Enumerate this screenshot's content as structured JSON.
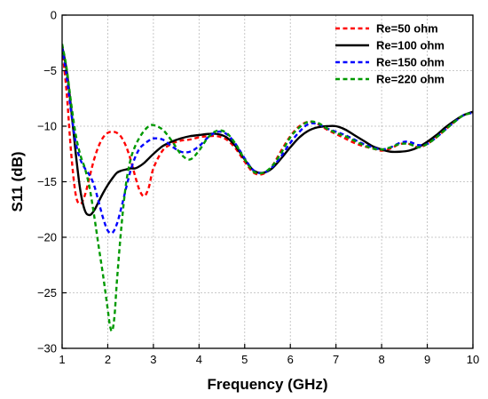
{
  "chart_data": {
    "type": "line",
    "title": "",
    "xlabel": "Frequency (GHz)",
    "ylabel": "S11 (dB)",
    "xlim": [
      1,
      10
    ],
    "ylim": [
      -30,
      0
    ],
    "xticks": [
      1,
      2,
      3,
      4,
      5,
      6,
      7,
      8,
      9,
      10
    ],
    "yticks": [
      0,
      -5,
      -10,
      -15,
      -20,
      -25,
      -30
    ],
    "grid": true,
    "legend_position": "top-right",
    "series": [
      {
        "name": "Re=50 ohm",
        "color": "#ff0000",
        "style": "dashed",
        "x": [
          1.0,
          1.1,
          1.2,
          1.3,
          1.4,
          1.5,
          1.6,
          1.7,
          1.8,
          1.9,
          2.0,
          2.1,
          2.2,
          2.3,
          2.4,
          2.5,
          2.6,
          2.7,
          2.8,
          2.9,
          3.0,
          3.2,
          3.4,
          3.6,
          3.8,
          4.0,
          4.2,
          4.4,
          4.6,
          4.8,
          5.0,
          5.2,
          5.4,
          5.6,
          5.8,
          6.0,
          6.2,
          6.4,
          6.6,
          6.8,
          7.0,
          7.2,
          7.4,
          7.6,
          7.8,
          8.0,
          8.2,
          8.4,
          8.6,
          8.8,
          9.0,
          9.2,
          9.4,
          9.6,
          9.8,
          10.0
        ],
        "y": [
          -3.0,
          -7.0,
          -12.5,
          -16.2,
          -17.0,
          -16.2,
          -14.6,
          -13.0,
          -11.8,
          -11.0,
          -10.6,
          -10.5,
          -10.6,
          -11.0,
          -11.8,
          -13.0,
          -14.5,
          -15.8,
          -16.3,
          -15.5,
          -13.8,
          -12.2,
          -11.6,
          -11.3,
          -11.2,
          -11.0,
          -10.9,
          -10.9,
          -11.2,
          -12.0,
          -13.2,
          -14.2,
          -14.3,
          -13.6,
          -12.2,
          -10.9,
          -10.0,
          -9.6,
          -9.8,
          -10.3,
          -10.7,
          -11.1,
          -11.5,
          -11.8,
          -12.0,
          -12.2,
          -12.0,
          -11.6,
          -11.6,
          -11.9,
          -11.6,
          -11.0,
          -10.3,
          -9.6,
          -9.0,
          -8.8
        ]
      },
      {
        "name": "Re=100 ohm",
        "color": "#000000",
        "style": "solid",
        "x": [
          1.0,
          1.1,
          1.2,
          1.3,
          1.4,
          1.5,
          1.6,
          1.7,
          1.8,
          1.9,
          2.0,
          2.1,
          2.2,
          2.3,
          2.4,
          2.5,
          2.6,
          2.7,
          2.8,
          2.9,
          3.0,
          3.2,
          3.4,
          3.6,
          3.8,
          4.0,
          4.2,
          4.4,
          4.6,
          4.8,
          5.0,
          5.2,
          5.4,
          5.6,
          5.8,
          6.0,
          6.2,
          6.4,
          6.6,
          6.8,
          7.0,
          7.2,
          7.4,
          7.6,
          7.8,
          8.0,
          8.2,
          8.4,
          8.6,
          8.8,
          9.0,
          9.2,
          9.4,
          9.6,
          9.8,
          10.0
        ],
        "y": [
          -2.8,
          -5.0,
          -8.5,
          -12.5,
          -15.8,
          -17.6,
          -18.0,
          -17.6,
          -16.8,
          -16.0,
          -15.3,
          -14.7,
          -14.2,
          -14.0,
          -13.9,
          -13.8,
          -13.8,
          -13.6,
          -13.3,
          -12.9,
          -12.5,
          -11.8,
          -11.4,
          -11.1,
          -10.9,
          -10.8,
          -10.7,
          -10.7,
          -11.0,
          -11.8,
          -13.0,
          -14.0,
          -14.2,
          -13.8,
          -12.9,
          -11.9,
          -11.0,
          -10.4,
          -10.1,
          -10.0,
          -10.0,
          -10.3,
          -10.8,
          -11.3,
          -11.8,
          -12.1,
          -12.3,
          -12.3,
          -12.2,
          -11.9,
          -11.4,
          -10.8,
          -10.1,
          -9.5,
          -9.0,
          -8.7
        ]
      },
      {
        "name": "Re=150 ohm",
        "color": "#0000ff",
        "style": "dashed",
        "x": [
          1.0,
          1.1,
          1.2,
          1.3,
          1.4,
          1.5,
          1.6,
          1.7,
          1.8,
          1.9,
          2.0,
          2.1,
          2.2,
          2.3,
          2.4,
          2.5,
          2.6,
          2.7,
          2.8,
          2.9,
          3.0,
          3.2,
          3.4,
          3.6,
          3.8,
          4.0,
          4.2,
          4.4,
          4.6,
          4.8,
          5.0,
          5.2,
          5.4,
          5.6,
          5.8,
          6.0,
          6.2,
          6.4,
          6.6,
          6.8,
          7.0,
          7.2,
          7.4,
          7.6,
          7.8,
          8.0,
          8.2,
          8.4,
          8.6,
          8.8,
          9.0,
          9.2,
          9.4,
          9.6,
          9.8,
          10.0
        ],
        "y": [
          -2.9,
          -5.5,
          -8.8,
          -11.5,
          -13.0,
          -13.8,
          -14.4,
          -15.3,
          -16.8,
          -18.3,
          -19.4,
          -19.6,
          -18.8,
          -17.3,
          -15.6,
          -14.0,
          -12.8,
          -12.0,
          -11.6,
          -11.3,
          -11.1,
          -11.2,
          -11.8,
          -12.3,
          -12.3,
          -11.8,
          -11.0,
          -10.5,
          -10.7,
          -11.6,
          -12.9,
          -14.0,
          -14.2,
          -13.7,
          -12.7,
          -11.5,
          -10.5,
          -9.8,
          -9.8,
          -10.2,
          -10.5,
          -10.8,
          -11.2,
          -11.6,
          -11.9,
          -12.1,
          -11.9,
          -11.5,
          -11.4,
          -11.7,
          -11.6,
          -11.0,
          -10.3,
          -9.6,
          -9.0,
          -8.8
        ]
      },
      {
        "name": "Re=220 ohm",
        "color": "#009900",
        "style": "dashed",
        "x": [
          1.0,
          1.1,
          1.2,
          1.3,
          1.4,
          1.5,
          1.6,
          1.7,
          1.8,
          1.9,
          2.0,
          2.05,
          2.1,
          2.15,
          2.2,
          2.3,
          2.4,
          2.5,
          2.6,
          2.7,
          2.8,
          2.9,
          3.0,
          3.2,
          3.4,
          3.6,
          3.8,
          4.0,
          4.2,
          4.4,
          4.6,
          4.8,
          5.0,
          5.2,
          5.4,
          5.6,
          5.8,
          6.0,
          6.2,
          6.4,
          6.6,
          6.8,
          7.0,
          7.2,
          7.4,
          7.6,
          7.8,
          8.0,
          8.2,
          8.4,
          8.6,
          8.8,
          9.0,
          9.2,
          9.4,
          9.6,
          9.8,
          10.0
        ],
        "y": [
          -2.6,
          -4.8,
          -8.0,
          -10.8,
          -12.6,
          -13.8,
          -15.5,
          -18.0,
          -20.8,
          -23.5,
          -26.5,
          -28.0,
          -28.4,
          -27.0,
          -24.0,
          -19.0,
          -15.2,
          -13.0,
          -11.8,
          -11.0,
          -10.4,
          -10.0,
          -9.9,
          -10.3,
          -11.3,
          -12.5,
          -13.0,
          -12.2,
          -11.0,
          -10.4,
          -10.6,
          -11.6,
          -13.0,
          -14.1,
          -14.2,
          -13.6,
          -12.4,
          -11.0,
          -10.1,
          -9.6,
          -9.7,
          -10.2,
          -10.6,
          -10.9,
          -11.3,
          -11.7,
          -12.0,
          -12.1,
          -11.9,
          -11.6,
          -11.6,
          -11.9,
          -11.6,
          -11.0,
          -10.3,
          -9.6,
          -9.0,
          -8.8
        ]
      }
    ]
  }
}
